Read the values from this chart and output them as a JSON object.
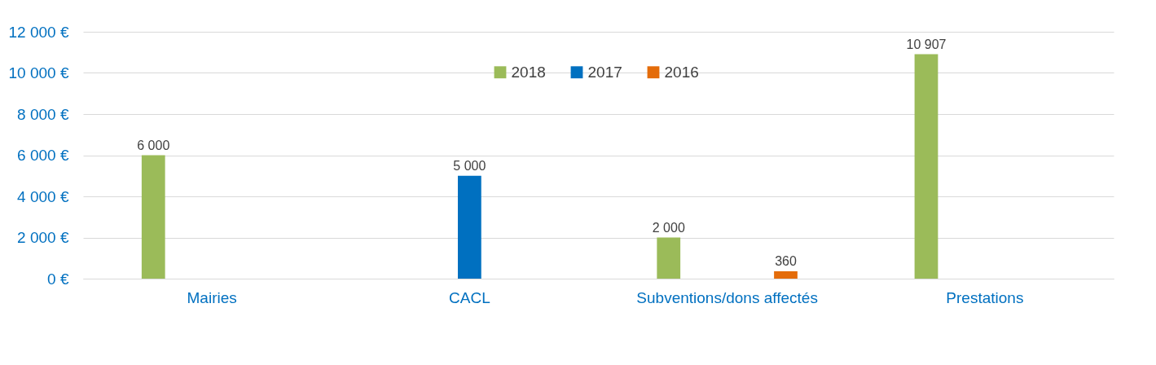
{
  "chart_data": {
    "type": "bar",
    "categories": [
      "Mairies",
      "CACL",
      "Subventions/dons affectés",
      "Prestations"
    ],
    "series": [
      {
        "name": "2018",
        "color": "#9bbb59",
        "values": [
          6000,
          null,
          2000,
          10907
        ],
        "value_labels": [
          "6 000",
          null,
          "2 000",
          "10 907"
        ]
      },
      {
        "name": "2017",
        "color": "#0070c0",
        "values": [
          null,
          5000,
          null,
          null
        ],
        "value_labels": [
          null,
          "5 000",
          null,
          null
        ]
      },
      {
        "name": "2016",
        "color": "#e46c0a",
        "values": [
          null,
          null,
          360,
          null
        ],
        "value_labels": [
          null,
          null,
          "360",
          null
        ]
      }
    ],
    "ylim": [
      0,
      12000
    ],
    "yticks": [
      {
        "value": 0,
        "label": "0 €"
      },
      {
        "value": 2000,
        "label": "2 000 €"
      },
      {
        "value": 4000,
        "label": "4 000 €"
      },
      {
        "value": 6000,
        "label": "6 000 €"
      },
      {
        "value": 8000,
        "label": "8 000 €"
      },
      {
        "value": 10000,
        "label": "10 000 €"
      },
      {
        "value": 12000,
        "label": "12 000 €"
      }
    ],
    "grid": "y",
    "legend": "top"
  }
}
